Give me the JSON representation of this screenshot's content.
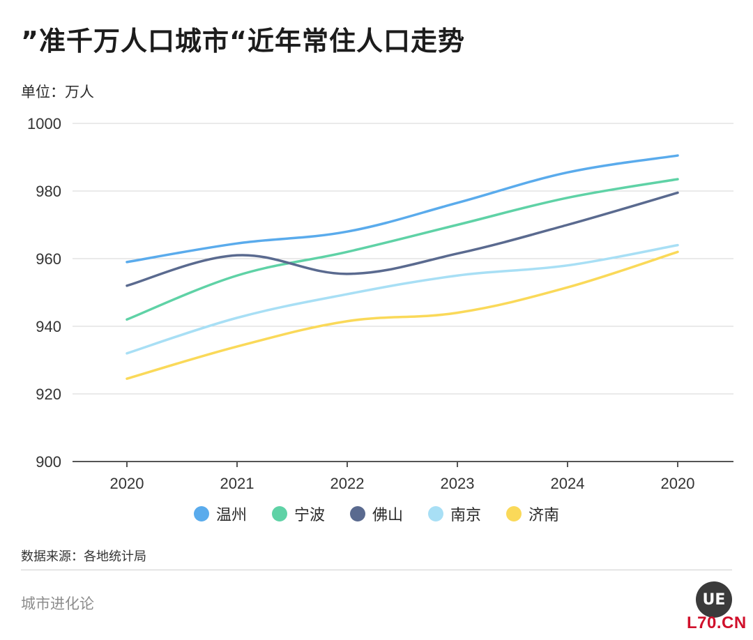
{
  "header": {
    "title": "”准千万人口城市“近年常住人口走势",
    "unit": "单位：万人"
  },
  "footer": {
    "source": "数据来源：各地统计局",
    "brand": "城市进化论",
    "logo_text": "UE",
    "site_watermark": "L70.CN"
  },
  "chart_data": {
    "type": "line",
    "title": "”准千万人口城市“近年常住人口走势",
    "ylabel": "单位：万人",
    "xlabel": "",
    "categories": [
      "2020",
      "2021",
      "2022",
      "2023",
      "2024",
      "2020"
    ],
    "ylim": [
      900,
      1000
    ],
    "yticks": [
      900,
      920,
      940,
      960,
      980,
      1000
    ],
    "grid": true,
    "legend_position": "bottom",
    "series": [
      {
        "name": "温州",
        "color": "#5aabec",
        "values": [
          959,
          964.5,
          968,
          976.5,
          985.5,
          990.5
        ]
      },
      {
        "name": "宁波",
        "color": "#5fd2a6",
        "values": [
          942,
          955,
          962,
          970,
          978,
          983.5
        ]
      },
      {
        "name": "佛山",
        "color": "#5a6a8f",
        "values": [
          952,
          961,
          955.5,
          961.5,
          970,
          979.5
        ]
      },
      {
        "name": "南京",
        "color": "#a8dff5",
        "values": [
          932,
          942.5,
          949.5,
          955,
          958,
          964
        ]
      },
      {
        "name": "济南",
        "color": "#fad959",
        "values": [
          924.5,
          934,
          941.5,
          944,
          951.5,
          962
        ]
      }
    ]
  }
}
